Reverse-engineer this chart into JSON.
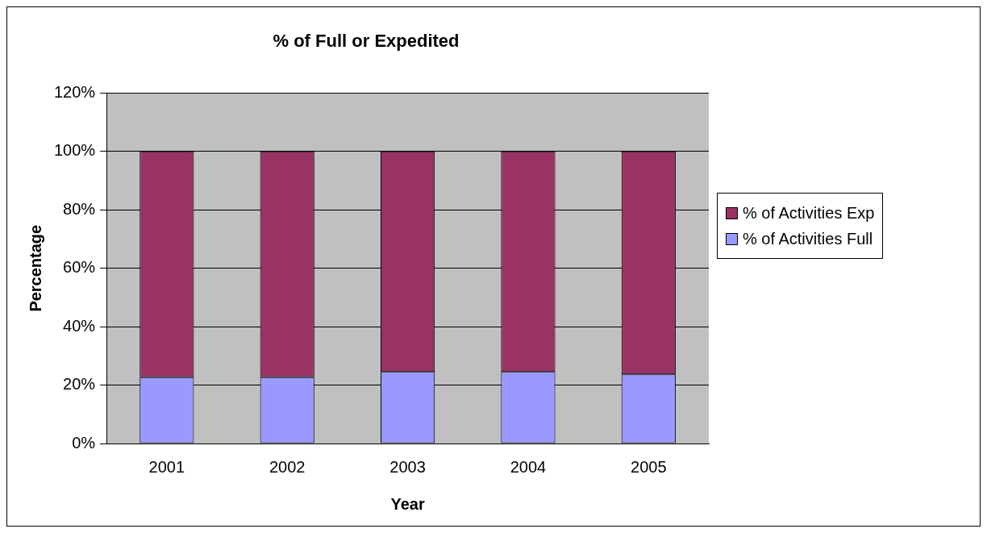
{
  "chart_data": {
    "type": "bar",
    "title": "% of Full or Expedited",
    "xlabel": "Year",
    "ylabel": "Percentage",
    "categories": [
      "2001",
      "2002",
      "2003",
      "2004",
      "2005"
    ],
    "stacked": true,
    "series": [
      {
        "name": "% of Activities Full",
        "color": "#9999ff",
        "values": [
          22.7,
          22.7,
          24.5,
          24.5,
          23.7
        ]
      },
      {
        "name": "% of Activities Exp",
        "color": "#993366",
        "values": [
          77.3,
          77.3,
          75.5,
          75.5,
          76.3
        ]
      }
    ],
    "ylim": [
      0,
      120
    ],
    "yticks": [
      {
        "value": 0,
        "label": "0%"
      },
      {
        "value": 20,
        "label": "20%"
      },
      {
        "value": 40,
        "label": "40%"
      },
      {
        "value": 60,
        "label": "60%"
      },
      {
        "value": 80,
        "label": "80%"
      },
      {
        "value": 100,
        "label": "100%"
      },
      {
        "value": 120,
        "label": "120%"
      }
    ],
    "grid": "y",
    "legend": "right"
  }
}
